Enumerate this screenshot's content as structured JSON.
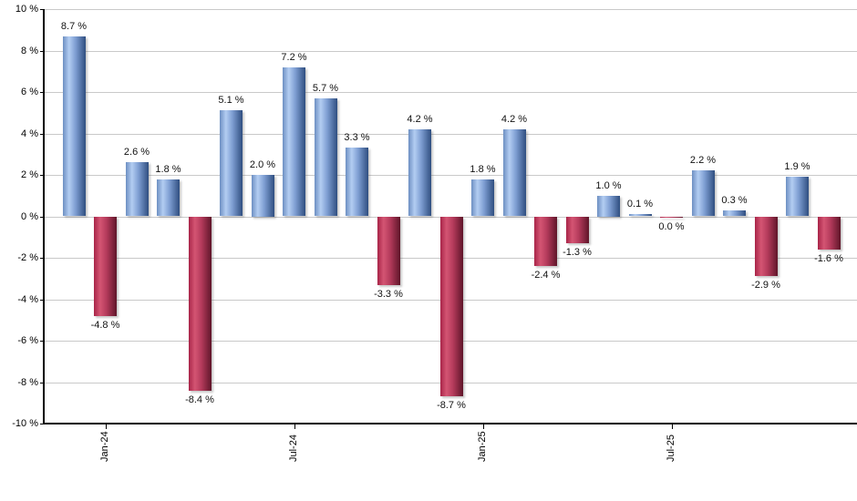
{
  "chart_data": {
    "type": "bar",
    "title": "",
    "xlabel": "",
    "ylabel": "",
    "ylim": [
      -10,
      10
    ],
    "grid": true,
    "y_tick_labels": [
      "10 %",
      "8 %",
      "6 %",
      "4 %",
      "2 %",
      "0 %",
      "-2 %",
      "-4 %",
      "-6 %",
      "-8 %",
      "-10 %"
    ],
    "y_tick_values": [
      10,
      8,
      6,
      4,
      2,
      0,
      -2,
      -4,
      -6,
      -8,
      -10
    ],
    "x_ticks": [
      {
        "label": "Jan-24",
        "bar_index": 1
      },
      {
        "label": "Jul-24",
        "bar_index": 7
      },
      {
        "label": "Jan-25",
        "bar_index": 13
      },
      {
        "label": "Jul-25",
        "bar_index": 19
      }
    ],
    "bars": [
      {
        "label": "8.7 %",
        "value": 8.7,
        "color": "blue"
      },
      {
        "label": "-4.8 %",
        "value": -4.8,
        "color": "red"
      },
      {
        "label": "2.6 %",
        "value": 2.6,
        "color": "blue"
      },
      {
        "label": "1.8 %",
        "value": 1.8,
        "color": "blue"
      },
      {
        "label": "-8.4 %",
        "value": -8.4,
        "color": "red"
      },
      {
        "label": "5.1 %",
        "value": 5.1,
        "color": "blue"
      },
      {
        "label": "2.0 %",
        "value": 2.0,
        "color": "blue"
      },
      {
        "label": "7.2 %",
        "value": 7.2,
        "color": "blue"
      },
      {
        "label": "5.7 %",
        "value": 5.7,
        "color": "blue"
      },
      {
        "label": "3.3 %",
        "value": 3.3,
        "color": "blue"
      },
      {
        "label": "-3.3 %",
        "value": -3.3,
        "color": "red"
      },
      {
        "label": "4.2 %",
        "value": 4.2,
        "color": "blue"
      },
      {
        "label": "-8.7 %",
        "value": -8.7,
        "color": "red"
      },
      {
        "label": "1.8 %",
        "value": 1.8,
        "color": "blue"
      },
      {
        "label": "4.2 %",
        "value": 4.2,
        "color": "blue"
      },
      {
        "label": "-2.4 %",
        "value": -2.4,
        "color": "red"
      },
      {
        "label": "-1.3 %",
        "value": -1.3,
        "color": "red"
      },
      {
        "label": "1.0 %",
        "value": 1.0,
        "color": "blue"
      },
      {
        "label": "0.1 %",
        "value": 0.1,
        "color": "blue"
      },
      {
        "label": "0.0 %",
        "value": 0.0,
        "color": "red"
      },
      {
        "label": "2.2 %",
        "value": 2.2,
        "color": "blue"
      },
      {
        "label": "0.3 %",
        "value": 0.3,
        "color": "blue"
      },
      {
        "label": "-2.9 %",
        "value": -2.9,
        "color": "red"
      },
      {
        "label": "1.9 %",
        "value": 1.9,
        "color": "blue"
      },
      {
        "label": "-1.6 %",
        "value": -1.6,
        "color": "red"
      }
    ],
    "colors": {
      "blue_edge": "#6d8fc2",
      "blue_light": "#b3cdf2",
      "blue_mid": "#7f9fd3",
      "blue_dark": "#2f4e80",
      "red_edge": "#a82448",
      "red_light": "#d45573",
      "red_mid": "#b53b5c",
      "red_dark": "#5f1529",
      "grid": "#c9c9c9",
      "axis": "#000000",
      "text": "#000000",
      "background": "#ffffff"
    }
  }
}
